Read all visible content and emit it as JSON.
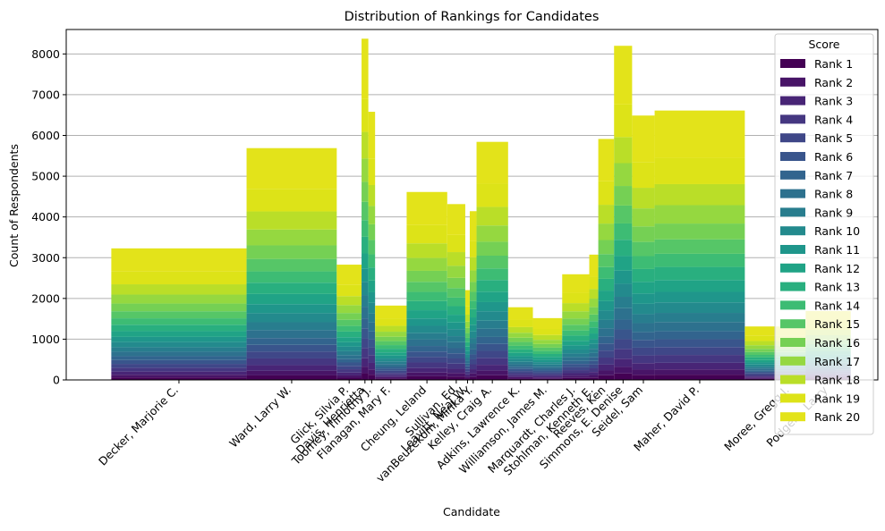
{
  "chart_data": {
    "type": "bar",
    "stacked": true,
    "variable_width": true,
    "title": "Distribution of Rankings for Candidates",
    "xlabel": "Candidate",
    "ylabel": "Count of Respondents",
    "ylim": [
      0,
      8600
    ],
    "yticks": [
      0,
      1000,
      2000,
      3000,
      4000,
      5000,
      6000,
      7000,
      8000
    ],
    "grid": "horizontal",
    "colormap": "viridis",
    "legend": {
      "title": "Score",
      "placement": "top-right",
      "entries": [
        "Rank 1",
        "Rank 2",
        "Rank 3",
        "Rank 4",
        "Rank 5",
        "Rank 6",
        "Rank 7",
        "Rank 8",
        "Rank 9",
        "Rank 10",
        "Rank 11",
        "Rank 12",
        "Rank 13",
        "Rank 14",
        "Rank 15",
        "Rank 16",
        "Rank 17",
        "Rank 18",
        "Rank 19",
        "Rank 20"
      ],
      "colors": [
        "#440154",
        "#481467",
        "#482576",
        "#453781",
        "#3f4788",
        "#39558c",
        "#32648e",
        "#2d718e",
        "#287d8e",
        "#238a8d",
        "#1f968b",
        "#20a386",
        "#29af7f",
        "#3dbc74",
        "#56c667",
        "#75d054",
        "#95d840",
        "#bade28",
        "#dde318",
        "#e3e31a"
      ]
    },
    "candidates": [
      {
        "name": "Decker, Marjorie C.",
        "x": 0.0,
        "width": 3.0,
        "total": 3150
      },
      {
        "name": "Ward, Larry W.",
        "x": 3.0,
        "width": 2.0,
        "total": 5550
      },
      {
        "name": "Glick, Silvia P.",
        "x": 5.0,
        "width": 0.55,
        "total": 2760
      },
      {
        "name": "Davis, Henrietta",
        "x": 5.55,
        "width": 0.15,
        "total": 8170
      },
      {
        "name": "Toomey, Timothy J.",
        "x": 5.7,
        "width": 0.15,
        "total": 6420
      },
      {
        "name": "Flanagan, Mary F.",
        "x": 5.85,
        "width": 0.7,
        "total": 1780
      },
      {
        "name": "Cheung, Leland",
        "x": 6.55,
        "width": 0.9,
        "total": 4500
      },
      {
        "name": "Sullivan, Ed",
        "x": 7.45,
        "width": 0.4,
        "total": 4210
      },
      {
        "name": "Leavitt, Neal W.",
        "x": 7.85,
        "width": 0.1,
        "total": 2150
      },
      {
        "name": "vanBeuzekom, Minka Y.",
        "x": 7.95,
        "width": 0.15,
        "total": 4040
      },
      {
        "name": "Kelley, Craig A.",
        "x": 8.1,
        "width": 0.7,
        "total": 5700
      },
      {
        "name": "Adkins, Lawrence K.",
        "x": 8.8,
        "width": 0.55,
        "total": 1740
      },
      {
        "name": "Williamson, James M.",
        "x": 9.35,
        "width": 0.65,
        "total": 1480
      },
      {
        "name": "Marquardt, Charles J.",
        "x": 10.0,
        "width": 0.6,
        "total": 2530
      },
      {
        "name": "Stohlman, Kenneth E.",
        "x": 10.6,
        "width": 0.2,
        "total": 3000
      },
      {
        "name": "Reeves, Ken",
        "x": 10.8,
        "width": 0.35,
        "total": 5770
      },
      {
        "name": "Simmons, E. Denise",
        "x": 11.15,
        "width": 0.4,
        "total": 8000
      },
      {
        "name": "Seidel, Sam",
        "x": 11.55,
        "width": 0.5,
        "total": 6330
      },
      {
        "name": "Maher, David P.",
        "x": 12.05,
        "width": 2.0,
        "total": 6450
      },
      {
        "name": "Moree, Gregg J.",
        "x": 14.05,
        "width": 2.0,
        "total": 1280
      },
      {
        "name": "Podgers, Larry",
        "x": 15.4,
        "width": 1.0,
        "total": 1650
      }
    ],
    "rank_shares": [
      0.02,
      0.02,
      0.025,
      0.03,
      0.03,
      0.03,
      0.03,
      0.035,
      0.035,
      0.04,
      0.04,
      0.045,
      0.05,
      0.05,
      0.055,
      0.06,
      0.07,
      0.08,
      0.1,
      0.18
    ]
  }
}
